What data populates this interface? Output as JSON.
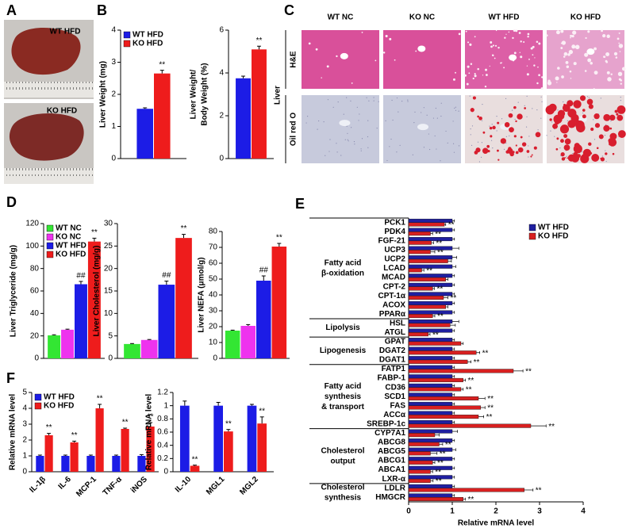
{
  "panel_labels": [
    "A",
    "B",
    "C",
    "D",
    "E",
    "F"
  ],
  "panel_a": {
    "labels": [
      "WT HFD",
      "KO HFD"
    ]
  },
  "panel_c": {
    "columns": [
      "WT  NC",
      "KO  NC",
      "WT  HFD",
      "KO  HFD"
    ],
    "rows": [
      "H&E",
      "Oil red O"
    ],
    "tissue": "Liver"
  },
  "chart_data": [
    {
      "type": "bar",
      "ylabel": "Liver Weight (mg)",
      "categories": [
        null
      ],
      "series": [
        {
          "name": "WT HFD",
          "color": "#1c1ce6",
          "values": [
            1.55
          ],
          "errors": [
            0.03
          ]
        },
        {
          "name": "KO HFD",
          "color": "#ee1c1c",
          "values": [
            2.65
          ],
          "errors": [
            0.1
          ],
          "annotations": [
            "**"
          ]
        }
      ],
      "ylim": [
        0,
        4
      ],
      "yticks": [
        0,
        1,
        2,
        3,
        4
      ],
      "legend": "upper left"
    },
    {
      "type": "bar",
      "ylabel": [
        "Liver Weight/",
        "Body Weight (%)"
      ],
      "categories": [
        null
      ],
      "series": [
        {
          "color": "#1c1ce6",
          "values": [
            3.75
          ],
          "errors": [
            0.1
          ]
        },
        {
          "color": "#ee1c1c",
          "values": [
            5.1
          ],
          "errors": [
            0.15
          ],
          "annotations": [
            "**"
          ]
        }
      ],
      "ylim": [
        0,
        6
      ],
      "yticks": [
        0,
        2,
        4,
        6
      ]
    },
    {
      "type": "bar",
      "ylabel": "Liver Triglyceride (mg/g)",
      "categories": [
        null
      ],
      "series": [
        {
          "name": "WT NC",
          "color": "#33e633",
          "values": [
            20.5
          ],
          "errors": [
            0.5
          ]
        },
        {
          "name": "KO NC",
          "color": "#ee33ee",
          "values": [
            25.5
          ],
          "errors": [
            0.5
          ]
        },
        {
          "name": "WT HFD",
          "color": "#1c1ce6",
          "values": [
            66
          ],
          "errors": [
            2.5
          ],
          "annotations": [
            "##"
          ]
        },
        {
          "name": "KO HFD",
          "color": "#ee1c1c",
          "values": [
            104
          ],
          "errors": [
            3
          ],
          "annotations": [
            "**"
          ]
        }
      ],
      "ylim": [
        0,
        120
      ],
      "yticks": [
        0,
        20,
        40,
        60,
        80,
        100,
        120
      ],
      "legend": "upper left"
    },
    {
      "type": "bar",
      "ylabel": "Liver Cholesterol (mg/g)",
      "categories": [
        null
      ],
      "series": [
        {
          "color": "#33e633",
          "values": [
            3.2
          ],
          "errors": [
            0.1
          ]
        },
        {
          "color": "#ee33ee",
          "values": [
            4.1
          ],
          "errors": [
            0.1
          ]
        },
        {
          "color": "#1c1ce6",
          "values": [
            16.4
          ],
          "errors": [
            0.8
          ],
          "annotations": [
            "##"
          ]
        },
        {
          "color": "#ee1c1c",
          "values": [
            26.8
          ],
          "errors": [
            0.8
          ],
          "annotations": [
            "**"
          ]
        }
      ],
      "ylim": [
        0,
        30
      ],
      "yticks": [
        0,
        5,
        10,
        15,
        20,
        25,
        30
      ]
    },
    {
      "type": "bar",
      "ylabel": "Liver NEFA (μmol/g)",
      "categories": [
        null
      ],
      "series": [
        {
          "color": "#33e633",
          "values": [
            17.5
          ],
          "errors": [
            0.3
          ]
        },
        {
          "color": "#ee33ee",
          "values": [
            20.5
          ],
          "errors": [
            0.8
          ]
        },
        {
          "color": "#1c1ce6",
          "values": [
            49
          ],
          "errors": [
            3
          ],
          "annotations": [
            "##"
          ]
        },
        {
          "color": "#ee1c1c",
          "values": [
            70.5
          ],
          "errors": [
            2
          ],
          "annotations": [
            "**"
          ]
        }
      ],
      "ylim": [
        0,
        80
      ],
      "yticks": [
        0,
        10,
        20,
        30,
        40,
        50,
        60,
        70,
        80
      ]
    },
    {
      "type": "barh",
      "xlabel": "Relative mRNA level",
      "groups": [
        {
          "label": [
            "Fatty acid",
            "β-oxidation"
          ],
          "categories": [
            "PCK1",
            "PDK4",
            "FGF-21",
            "UCP3",
            "UCP2",
            "LCAD",
            "MCAD",
            "CPT-2",
            "CPT-1α",
            "ACOX",
            "PPARα"
          ]
        },
        {
          "label": [
            "Lipolysis"
          ],
          "categories": [
            "HSL",
            "ATGL"
          ]
        },
        {
          "label": [
            "Lipogenesis"
          ],
          "categories": [
            "GPAT",
            "DGAT2",
            "DGAT1"
          ]
        },
        {
          "label": [
            "Fatty acid",
            "synthesis",
            "& transport"
          ],
          "categories": [
            "FATP1",
            "FABP-1",
            "CD36",
            "SCD1",
            "FAS",
            "ACCα",
            "SREBP-1c"
          ]
        },
        {
          "label": [
            "Cholesterol",
            "output"
          ],
          "categories": [
            "CYP7A1",
            "ABCG8",
            "ABCG5",
            "ABCG1",
            "ABCA1",
            "LXR-α"
          ]
        },
        {
          "label": [
            "Cholesterol",
            "synthesis"
          ],
          "categories": [
            "LDLR",
            "HMGCR"
          ]
        }
      ],
      "series": [
        {
          "name": "WT HFD",
          "color": "#1f1fa0",
          "values": [
            1,
            1,
            1,
            1,
            1,
            1,
            1,
            1,
            1,
            1,
            1,
            1,
            1,
            1,
            1,
            1,
            1,
            1,
            1,
            1,
            1,
            1,
            1,
            1,
            1,
            1,
            1,
            1,
            1,
            1,
            1
          ],
          "errors": [
            0.05,
            0.05,
            0.05,
            0.15,
            0.1,
            0.08,
            0.05,
            0.05,
            0.05,
            0.05,
            0.05,
            0.15,
            0.05,
            0.05,
            0.05,
            0.05,
            0.05,
            0.05,
            0.05,
            0.05,
            0.05,
            0.05,
            0.05,
            0.12,
            0.05,
            0.08,
            0.05,
            0.05,
            0.05,
            0.05,
            0.05
          ]
        },
        {
          "name": "KO HFD",
          "color": "#d82020",
          "values": [
            0.82,
            0.5,
            0.52,
            0.5,
            0.9,
            0.3,
            0.85,
            0.55,
            0.8,
            0.85,
            0.55,
            0.95,
            0.45,
            1.2,
            1.55,
            1.35,
            2.4,
            1.25,
            1.2,
            1.6,
            1.65,
            1.6,
            2.8,
            0.6,
            0.7,
            0.5,
            0.55,
            0.5,
            0.5,
            2.65,
            1.25
          ],
          "errors": [
            0.03,
            0.05,
            0.05,
            0.1,
            0.08,
            0.05,
            0.05,
            0.04,
            0.1,
            0.05,
            0.05,
            0.12,
            0.04,
            0.05,
            0.08,
            0.08,
            0.22,
            0.05,
            0.05,
            0.15,
            0.1,
            0.12,
            0.35,
            0.1,
            0.08,
            0.15,
            0.05,
            0.05,
            0.06,
            0.2,
            0.05
          ],
          "annotations": [
            "**",
            "**",
            "**",
            "**",
            null,
            "**",
            null,
            "**",
            "**",
            null,
            "**",
            null,
            "**",
            null,
            "**",
            "**",
            "**",
            "**",
            "**",
            "**",
            "**",
            "**",
            "**",
            null,
            "**",
            "**",
            "**",
            "**",
            "**",
            "**",
            "**"
          ]
        }
      ],
      "xlim": [
        0,
        4
      ],
      "xticks": [
        0,
        1,
        2,
        3,
        4
      ],
      "legend": "upper right"
    },
    {
      "type": "bar",
      "ylabel": "Relative mRNA level",
      "categories": [
        "IL-1β",
        "IL-6",
        "MCP-1",
        "TNF-α",
        "iNOS"
      ],
      "series": [
        {
          "name": "WT HFD",
          "color": "#1c1ce6",
          "values": [
            1,
            1,
            1,
            1,
            1
          ],
          "errors": [
            0.05,
            0.05,
            0.05,
            0.05,
            0.08
          ]
        },
        {
          "name": "KO HFD",
          "color": "#ee1c1c",
          "values": [
            2.3,
            1.85,
            4.0,
            2.7,
            2.85
          ],
          "errors": [
            0.12,
            0.08,
            0.25,
            0.05,
            0.25
          ],
          "annotations": [
            "**",
            "**",
            "**",
            "**",
            "**"
          ]
        }
      ],
      "ylim": [
        0,
        5
      ],
      "yticks": [
        0,
        1,
        2,
        3,
        4,
        5
      ],
      "legend": "upper left"
    },
    {
      "type": "bar",
      "ylabel": "Relative mRNA level",
      "categories": [
        "IL-10",
        "MGL1",
        "MGL2"
      ],
      "series": [
        {
          "color": "#1c1ce6",
          "values": [
            1,
            1,
            1
          ],
          "errors": [
            0.07,
            0.05,
            0.02
          ]
        },
        {
          "color": "#ee1c1c",
          "values": [
            0.09,
            0.61,
            0.73
          ],
          "errors": [
            0.01,
            0.03,
            0.1
          ],
          "annotations": [
            "**",
            "**",
            "**"
          ]
        }
      ],
      "ylim": [
        0,
        1.2
      ],
      "yticks": [
        0,
        0.2,
        0.4,
        0.6,
        0.8,
        1,
        1.2
      ]
    }
  ]
}
